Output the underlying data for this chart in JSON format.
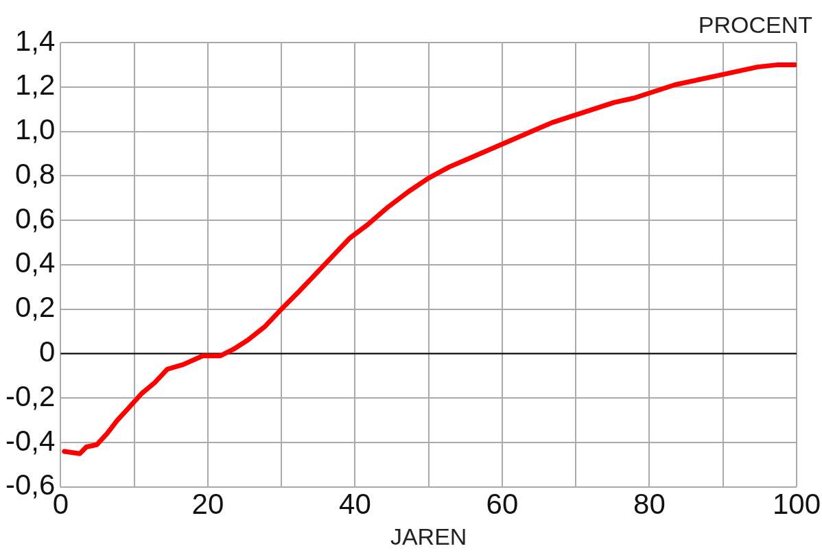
{
  "chart_data": {
    "type": "line",
    "xlabel": "JAREN",
    "ylabel": "PROCENT",
    "x": [
      0.5,
      2.6,
      3.5,
      4.9,
      6.3,
      7.7,
      9.1,
      11,
      12.8,
      14.5,
      16.6,
      19.3,
      21.7,
      23.5,
      25.4,
      27.7,
      30,
      32.4,
      34.7,
      37,
      39.3,
      41.7,
      44.5,
      47.3,
      50,
      52.8,
      55.6,
      58.4,
      61.2,
      64,
      66.8,
      69.6,
      72.4,
      75.2,
      77.9,
      80.7,
      83.5,
      86.3,
      89.1,
      91.9,
      94.7,
      97.5,
      99.8
    ],
    "series": [
      {
        "color": "#ff0000",
        "values": [
          -0.44,
          -0.45,
          -0.42,
          -0.41,
          -0.36,
          -0.3,
          -0.25,
          -0.18,
          -0.13,
          -0.07,
          -0.05,
          -0.01,
          -0.01,
          0.02,
          0.06,
          0.12,
          0.2,
          0.28,
          0.36,
          0.44,
          0.52,
          0.58,
          0.66,
          0.73,
          0.79,
          0.84,
          0.88,
          0.92,
          0.96,
          1.0,
          1.04,
          1.07,
          1.1,
          1.13,
          1.15,
          1.18,
          1.21,
          1.23,
          1.25,
          1.27,
          1.29,
          1.3,
          1.3
        ]
      }
    ],
    "xlim": [
      0,
      100
    ],
    "xticks": [
      0,
      {
        "value": 10,
        "label": null
      },
      20,
      {
        "value": 30,
        "label": null
      },
      40,
      {
        "value": 50,
        "label": null
      },
      60,
      {
        "value": 70,
        "label": null
      },
      80,
      {
        "value": 90,
        "label": null
      },
      100
    ],
    "ylim": [
      -0.6,
      1.4
    ],
    "yticks": [
      {
        "value": -0.6,
        "label": "-0,6"
      },
      {
        "value": -0.4,
        "label": "-0,4"
      },
      {
        "value": -0.2,
        "label": "-0,2"
      },
      0,
      {
        "value": 0.2,
        "label": "0,2"
      },
      {
        "value": 0.4,
        "label": "0,4"
      },
      {
        "value": 0.6,
        "label": "0,6"
      },
      {
        "value": 0.8,
        "label": "0,8"
      },
      {
        "value": 1.0,
        "label": "1,0"
      },
      {
        "value": 1.2,
        "label": "1,2"
      },
      {
        "value": 1.4,
        "label": "1,4"
      }
    ],
    "ref_lines": [
      {
        "axis": "y",
        "value": 0,
        "color": "#000000"
      }
    ],
    "grid": true,
    "legend": false,
    "marker": "none",
    "line_style": "solid"
  }
}
